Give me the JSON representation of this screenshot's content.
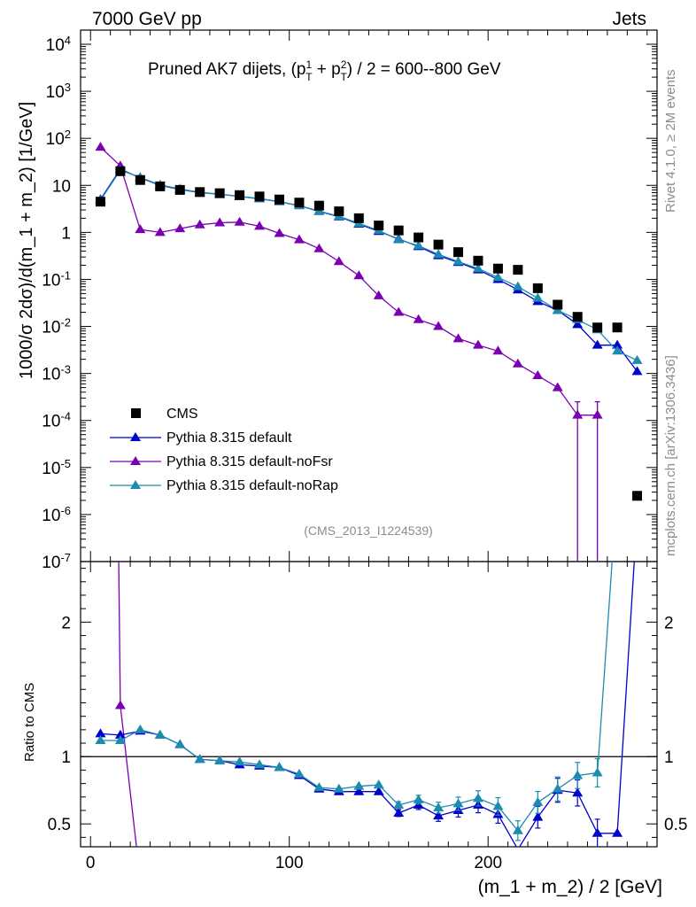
{
  "header": {
    "left": "7000 GeV pp",
    "right": "Jets"
  },
  "side_labels": {
    "rivet": "Rivet 4.1.0, ≥ 2M events",
    "mcplots": "mcplots.cern.ch [arXiv:1306.3436]"
  },
  "chart_data": {
    "type": "scatter",
    "title_prefix": "Pruned AK7 dijets, (p",
    "title_sup1": "1",
    "title_sub1": "T",
    "title_mid": " + p",
    "title_sup2": "2",
    "title_sub2": "T",
    "title_suffix": ") / 2 = 600--800 GeV",
    "analysis_id": "(CMS_2013_I1224539)",
    "xlabel": "(m_1 + m_2) / 2 [GeV]",
    "ylabel": "1000/σ  2dσ)/d(m_1 + m_2) [1/GeV]",
    "ratio_ylabel": "Ratio to CMS",
    "xlim": [
      -5,
      285
    ],
    "ylim": [
      1e-07,
      20000
    ],
    "ratio_ylim": [
      0.33,
      2.45
    ],
    "x_ticks": [
      0,
      100,
      200
    ],
    "x_tick_labels": [
      "0",
      "100",
      "200"
    ],
    "y_tick_labels": [
      {
        "base": "10",
        "exp": "-7",
        "v": -7
      },
      {
        "base": "10",
        "exp": "-6",
        "v": -6
      },
      {
        "base": "10",
        "exp": "-5",
        "v": -5
      },
      {
        "base": "10",
        "exp": "-4",
        "v": -4
      },
      {
        "base": "10",
        "exp": "-3",
        "v": -3
      },
      {
        "base": "10",
        "exp": "-2",
        "v": -2
      },
      {
        "base": "10",
        "exp": "-1",
        "v": -1
      },
      {
        "base": "1",
        "exp": "",
        "v": 0
      },
      {
        "base": "10",
        "exp": "",
        "v": 1
      },
      {
        "base": "10",
        "exp": "2",
        "v": 2
      },
      {
        "base": "10",
        "exp": "3",
        "v": 3
      },
      {
        "base": "10",
        "exp": "4",
        "v": 4
      }
    ],
    "ratio_ticks": [
      0.5,
      1,
      2
    ],
    "ratio_tick_labels": [
      "0.5",
      "1",
      "2"
    ],
    "x": [
      5,
      15,
      25,
      35,
      45,
      55,
      65,
      75,
      85,
      95,
      105,
      115,
      125,
      135,
      145,
      155,
      165,
      175,
      185,
      195,
      205,
      215,
      225,
      235,
      245,
      255,
      265,
      275
    ],
    "cms": [
      4.5,
      20,
      13,
      9.5,
      8,
      7.2,
      6.8,
      6.2,
      5.8,
      5.0,
      4.3,
      3.7,
      2.8,
      2.0,
      1.4,
      1.1,
      0.78,
      0.55,
      0.38,
      0.25,
      0.17,
      0.16,
      0.065,
      0.029,
      0.016,
      0.0095,
      0.0095,
      2.5e-06
    ],
    "series": [
      {
        "name": "Pythia 8.315 default",
        "color": "#0000cc",
        "values": [
          5.0,
          22,
          14.5,
          10,
          8.2,
          7.0,
          6.5,
          5.8,
          5.2,
          4.5,
          3.7,
          2.8,
          2.15,
          1.5,
          1.05,
          0.72,
          0.5,
          0.32,
          0.23,
          0.16,
          0.1,
          0.06,
          0.034,
          0.022,
          0.011,
          0.004,
          0.004,
          0.0011
        ],
        "ratio": [
          1.17,
          1.16,
          1.19,
          1.16,
          1.09,
          0.98,
          0.97,
          0.94,
          0.93,
          0.92,
          0.86,
          0.76,
          0.74,
          0.74,
          0.74,
          0.58,
          0.64,
          0.56,
          0.6,
          0.64,
          0.57,
          0.31,
          0.55,
          0.75,
          0.73,
          0.43,
          0.43,
          2.8
        ]
      },
      {
        "name": "Pythia 8.315 default-noFsr",
        "color": "#7a00b0",
        "values": [
          65,
          26,
          1.15,
          1.0,
          1.2,
          1.45,
          1.6,
          1.65,
          1.35,
          0.95,
          0.7,
          0.45,
          0.24,
          0.12,
          0.045,
          0.02,
          0.014,
          0.01,
          0.0055,
          0.004,
          0.003,
          0.0016,
          0.0009,
          0.0005,
          0.00013,
          0.00013,
          0.0,
          0.0
        ],
        "ratio": [
          14.4,
          1.38,
          0.09,
          0.1,
          0.15,
          0.2,
          0.24,
          0.27,
          0.23,
          0.19,
          0.16,
          0.12,
          0.085,
          0.06,
          0.032,
          0.018,
          0.018,
          0.018,
          0.014,
          0.016,
          0.018,
          0.01,
          0.014,
          0.017,
          0.008,
          0.014,
          0.0,
          0.0
        ]
      },
      {
        "name": "Pythia 8.315 default-noRap",
        "color": "#1b8cb0",
        "values": [
          4.8,
          21,
          14.8,
          10.2,
          8.4,
          7.1,
          6.5,
          5.8,
          5.2,
          4.5,
          3.7,
          2.85,
          2.2,
          1.55,
          1.1,
          0.7,
          0.52,
          0.34,
          0.24,
          0.17,
          0.11,
          0.07,
          0.04,
          0.022,
          0.014,
          0.0085,
          0.003,
          0.0019
        ],
        "ratio": [
          1.12,
          1.12,
          1.2,
          1.16,
          1.09,
          0.98,
          0.97,
          0.96,
          0.94,
          0.92,
          0.87,
          0.77,
          0.76,
          0.78,
          0.79,
          0.64,
          0.68,
          0.62,
          0.65,
          0.69,
          0.63,
          0.45,
          0.66,
          0.76,
          0.86,
          0.88,
          3.0,
          3.0
        ]
      }
    ],
    "legend": {
      "position": "lower-left",
      "cms_label": "CMS"
    }
  }
}
